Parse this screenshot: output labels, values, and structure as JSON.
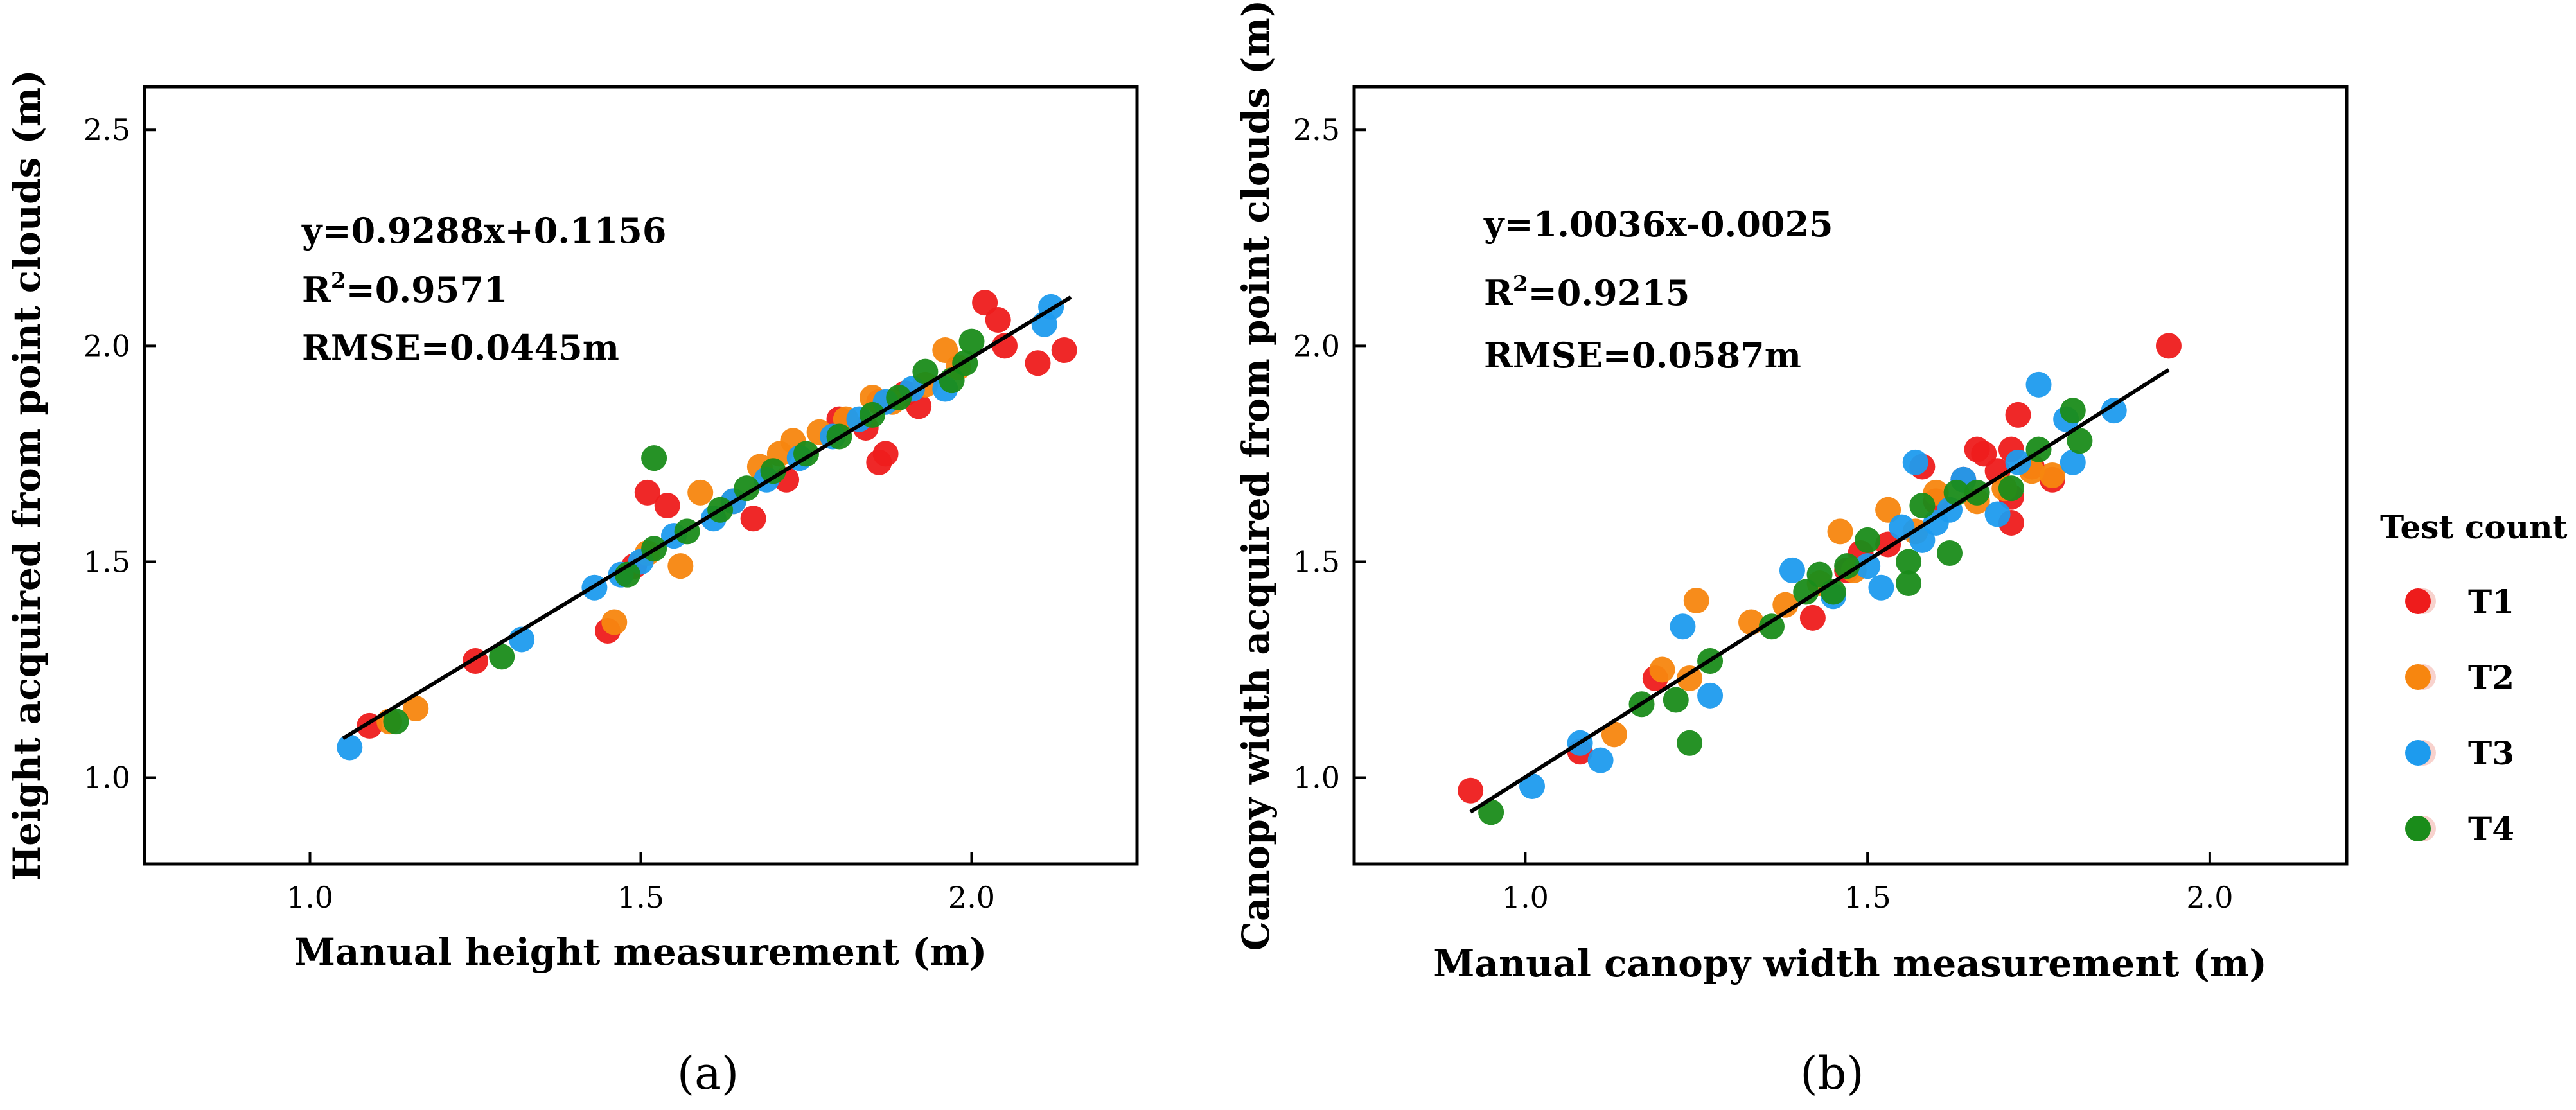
{
  "chart_data": [
    {
      "type": "scatter",
      "panel": "(a)",
      "xlabel": "Manual height measurement (m)",
      "ylabel": "Height  acquired from point clouds (m)",
      "xlim": [
        0.75,
        2.25
      ],
      "ylim": [
        0.8,
        2.6
      ],
      "xticks": [
        1.0,
        1.5,
        2.0
      ],
      "yticks": [
        1.0,
        1.5,
        2.0,
        2.5
      ],
      "xtick_labels": [
        "1.0",
        "1.5",
        "2.0"
      ],
      "ytick_labels": [
        "1.0",
        "1.5",
        "2.0",
        "2.5"
      ],
      "equation": "y=0.9288x+0.1156",
      "r2_prefix": "R",
      "r2_sup": "2",
      "r2_value": "=0.9571",
      "rmse": "RMSE=0.0445m",
      "fit_line": {
        "slope": 0.9288,
        "intercept": 0.1156,
        "x_range": [
          1.05,
          2.15
        ]
      },
      "series": [
        {
          "name": "T1",
          "points": [
            [
              1.09,
              1.12
            ],
            [
              1.45,
              1.34
            ],
            [
              1.49,
              1.49
            ],
            [
              1.51,
              1.66
            ],
            [
              1.54,
              1.63
            ],
            [
              1.67,
              1.6
            ],
            [
              1.8,
              1.83
            ],
            [
              1.84,
              1.81
            ],
            [
              1.86,
              1.87
            ],
            [
              1.87,
              1.75
            ],
            [
              1.9,
              1.89
            ],
            [
              1.92,
              1.86
            ],
            [
              2.04,
              2.06
            ],
            [
              2.05,
              2.0
            ],
            [
              2.1,
              1.96
            ],
            [
              2.14,
              1.99
            ],
            [
              1.25,
              1.27
            ],
            [
              1.72,
              1.69
            ],
            [
              2.02,
              2.1
            ],
            [
              1.86,
              1.73
            ]
          ]
        },
        {
          "name": "T2",
          "points": [
            [
              1.12,
              1.13
            ],
            [
              1.16,
              1.16
            ],
            [
              1.46,
              1.36
            ],
            [
              1.56,
              1.49
            ],
            [
              1.59,
              1.66
            ],
            [
              1.68,
              1.72
            ],
            [
              1.71,
              1.75
            ],
            [
              1.73,
              1.78
            ],
            [
              1.77,
              1.8
            ],
            [
              1.81,
              1.83
            ],
            [
              1.85,
              1.88
            ],
            [
              1.88,
              1.87
            ],
            [
              1.93,
              1.91
            ],
            [
              1.96,
              1.99
            ],
            [
              1.98,
              1.95
            ],
            [
              1.51,
              1.52
            ],
            [
              1.64,
              1.64
            ]
          ]
        },
        {
          "name": "T3",
          "points": [
            [
              1.06,
              1.07
            ],
            [
              1.32,
              1.32
            ],
            [
              1.43,
              1.44
            ],
            [
              1.47,
              1.47
            ],
            [
              1.55,
              1.56
            ],
            [
              1.61,
              1.6
            ],
            [
              1.64,
              1.64
            ],
            [
              1.69,
              1.69
            ],
            [
              1.74,
              1.74
            ],
            [
              1.79,
              1.79
            ],
            [
              1.83,
              1.83
            ],
            [
              1.87,
              1.87
            ],
            [
              1.91,
              1.9
            ],
            [
              1.96,
              1.9
            ],
            [
              2.11,
              2.05
            ],
            [
              2.12,
              2.09
            ],
            [
              1.5,
              1.5
            ]
          ]
        },
        {
          "name": "T4",
          "points": [
            [
              1.13,
              1.13
            ],
            [
              1.29,
              1.28
            ],
            [
              1.48,
              1.47
            ],
            [
              1.52,
              1.53
            ],
            [
              1.52,
              1.74
            ],
            [
              1.62,
              1.62
            ],
            [
              1.66,
              1.67
            ],
            [
              1.7,
              1.71
            ],
            [
              1.75,
              1.75
            ],
            [
              1.8,
              1.79
            ],
            [
              1.85,
              1.84
            ],
            [
              1.89,
              1.88
            ],
            [
              1.93,
              1.94
            ],
            [
              1.97,
              1.92
            ],
            [
              1.99,
              1.96
            ],
            [
              2.0,
              2.01
            ],
            [
              1.57,
              1.57
            ]
          ]
        }
      ]
    },
    {
      "type": "scatter",
      "panel": "(b)",
      "xlabel": "Manual canopy width measurement (m)",
      "ylabel": "Canopy width  acquired from point clouds (m)",
      "xlim": [
        0.75,
        2.2
      ],
      "ylim": [
        0.8,
        2.6
      ],
      "xticks": [
        1.0,
        1.5,
        2.0
      ],
      "yticks": [
        1.0,
        1.5,
        2.0,
        2.5
      ],
      "xtick_labels": [
        "1.0",
        "1.5",
        "2.0"
      ],
      "ytick_labels": [
        "1.0",
        "1.5",
        "2.0",
        "2.5"
      ],
      "equation": "y=1.0036x-0.0025",
      "r2_prefix": "R",
      "r2_sup": "2",
      "r2_value": "=0.9215",
      "rmse": "RMSE=0.0587m",
      "fit_line": {
        "slope": 1.0036,
        "intercept": -0.0025,
        "x_range": [
          0.92,
          1.94
        ]
      },
      "series": [
        {
          "name": "T1",
          "points": [
            [
              0.92,
              0.97
            ],
            [
              1.08,
              1.06
            ],
            [
              1.19,
              1.23
            ],
            [
              1.42,
              1.37
            ],
            [
              1.47,
              1.48
            ],
            [
              1.49,
              1.52
            ],
            [
              1.53,
              1.54
            ],
            [
              1.6,
              1.64
            ],
            [
              1.64,
              1.69
            ],
            [
              1.66,
              1.76
            ],
            [
              1.67,
              1.75
            ],
            [
              1.69,
              1.71
            ],
            [
              1.71,
              1.76
            ],
            [
              1.72,
              1.84
            ],
            [
              1.74,
              1.72
            ],
            [
              1.77,
              1.69
            ],
            [
              1.94,
              2.0
            ],
            [
              1.71,
              1.59
            ],
            [
              1.58,
              1.72
            ],
            [
              1.71,
              1.65
            ]
          ]
        },
        {
          "name": "T2",
          "points": [
            [
              1.13,
              1.1
            ],
            [
              1.2,
              1.25
            ],
            [
              1.24,
              1.23
            ],
            [
              1.25,
              1.41
            ],
            [
              1.33,
              1.36
            ],
            [
              1.38,
              1.4
            ],
            [
              1.43,
              1.45
            ],
            [
              1.46,
              1.57
            ],
            [
              1.48,
              1.48
            ],
            [
              1.53,
              1.62
            ],
            [
              1.57,
              1.57
            ],
            [
              1.6,
              1.66
            ],
            [
              1.66,
              1.64
            ],
            [
              1.7,
              1.67
            ],
            [
              1.74,
              1.71
            ],
            [
              1.77,
              1.7
            ]
          ]
        },
        {
          "name": "T3",
          "points": [
            [
              1.01,
              0.98
            ],
            [
              1.08,
              1.08
            ],
            [
              1.11,
              1.04
            ],
            [
              1.23,
              1.35
            ],
            [
              1.27,
              1.19
            ],
            [
              1.39,
              1.48
            ],
            [
              1.45,
              1.42
            ],
            [
              1.5,
              1.49
            ],
            [
              1.52,
              1.44
            ],
            [
              1.55,
              1.58
            ],
            [
              1.58,
              1.55
            ],
            [
              1.6,
              1.59
            ],
            [
              1.62,
              1.62
            ],
            [
              1.64,
              1.69
            ],
            [
              1.69,
              1.61
            ],
            [
              1.72,
              1.73
            ],
            [
              1.75,
              1.91
            ],
            [
              1.79,
              1.83
            ],
            [
              1.8,
              1.73
            ],
            [
              1.86,
              1.85
            ],
            [
              1.57,
              1.73
            ]
          ]
        },
        {
          "name": "T4",
          "points": [
            [
              0.95,
              0.92
            ],
            [
              1.17,
              1.17
            ],
            [
              1.22,
              1.18
            ],
            [
              1.24,
              1.08
            ],
            [
              1.27,
              1.27
            ],
            [
              1.36,
              1.35
            ],
            [
              1.41,
              1.43
            ],
            [
              1.43,
              1.47
            ],
            [
              1.45,
              1.43
            ],
            [
              1.47,
              1.49
            ],
            [
              1.5,
              1.55
            ],
            [
              1.56,
              1.45
            ],
            [
              1.56,
              1.5
            ],
            [
              1.58,
              1.63
            ],
            [
              1.62,
              1.52
            ],
            [
              1.63,
              1.66
            ],
            [
              1.66,
              1.66
            ],
            [
              1.71,
              1.67
            ],
            [
              1.75,
              1.76
            ],
            [
              1.8,
              1.85
            ],
            [
              1.81,
              1.78
            ]
          ]
        }
      ]
    }
  ],
  "series_colors": {
    "T1": "#ee1c1c",
    "T2": "#f7860f",
    "T3": "#1d9bee",
    "T4": "#1a8c1a"
  },
  "legend": {
    "title": "Test count",
    "entries": [
      "T1",
      "T2",
      "T3",
      "T4"
    ]
  }
}
